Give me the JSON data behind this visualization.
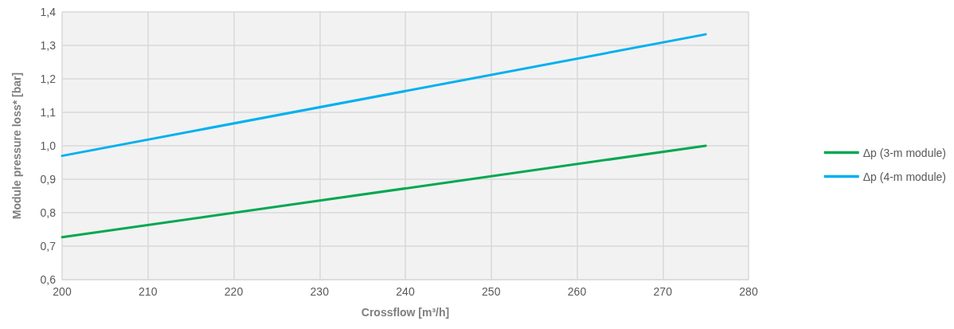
{
  "chart_data": {
    "type": "line",
    "xlabel": "Crossflow [m³/h]",
    "ylabel": "Module pressure loss* [bar]",
    "x": [
      200,
      275
    ],
    "series": [
      {
        "name": "Δp (3-m module)",
        "color": "#00a84f",
        "values": [
          0.727,
          1.0
        ]
      },
      {
        "name": "Δp (4-m module)",
        "color": "#00b0f0",
        "values": [
          0.97,
          1.333
        ]
      }
    ],
    "xlim": [
      200,
      280
    ],
    "xticks": [
      200,
      210,
      220,
      230,
      240,
      250,
      260,
      270,
      280
    ],
    "ylim": [
      0.6,
      1.4
    ],
    "yticks": [
      {
        "value": 0.6,
        "label": "0,6"
      },
      {
        "value": 0.7,
        "label": "0,7"
      },
      {
        "value": 0.8,
        "label": "0,8"
      },
      {
        "value": 0.9,
        "label": "0,9"
      },
      {
        "value": 1.0,
        "label": "1,0"
      },
      {
        "value": 1.1,
        "label": "1,1"
      },
      {
        "value": 1.2,
        "label": "1,2"
      },
      {
        "value": 1.3,
        "label": "1,3"
      },
      {
        "value": 1.4,
        "label": "1,4"
      }
    ],
    "grid": true,
    "legend": "right",
    "marker": "none",
    "line_style": "solid"
  }
}
